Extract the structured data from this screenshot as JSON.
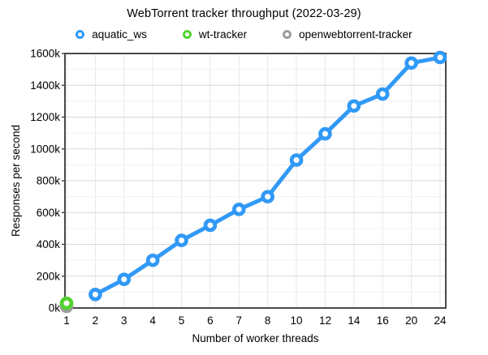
{
  "title": "WebTorrent tracker throughput (2022-03-29)",
  "legend": [
    {
      "label": "aquatic_ws",
      "color": "#3199f6"
    },
    {
      "label": "wt-tracker",
      "color": "#52d132"
    },
    {
      "label": "openwebtorrent-tracker",
      "color": "#9c9c9c"
    }
  ],
  "chart_data": {
    "type": "line",
    "title": "WebTorrent tracker throughput (2022-03-29)",
    "xlabel": "Number of worker threads",
    "ylabel": "Responses per second",
    "categories": [
      "1",
      "2",
      "3",
      "4",
      "5",
      "6",
      "7",
      "8",
      "10",
      "12",
      "14",
      "16",
      "20",
      "24"
    ],
    "ylim": [
      0,
      1600000
    ],
    "ytick_step": 200000,
    "yminor_step": 100000,
    "ytick_labels": [
      "0k",
      "200k",
      "400k",
      "600k",
      "800k",
      "1000k",
      "1200k",
      "1400k",
      "1600k"
    ],
    "grid": true,
    "legend_position": "top",
    "series": [
      {
        "name": "aquatic_ws",
        "color": "#3199f6",
        "values": [
          null,
          85000,
          180000,
          300000,
          425000,
          520000,
          620000,
          700000,
          930000,
          1095000,
          1270000,
          1345000,
          1540000,
          1575000
        ]
      },
      {
        "name": "wt-tracker",
        "color": "#52d132",
        "values": [
          30000,
          null,
          null,
          null,
          null,
          null,
          null,
          null,
          null,
          null,
          null,
          null,
          null,
          null
        ]
      },
      {
        "name": "openwebtorrent-tracker",
        "color": "#9c9c9c",
        "values": [
          10000,
          null,
          null,
          null,
          null,
          null,
          null,
          null,
          null,
          null,
          null,
          null,
          null,
          null
        ]
      }
    ]
  }
}
